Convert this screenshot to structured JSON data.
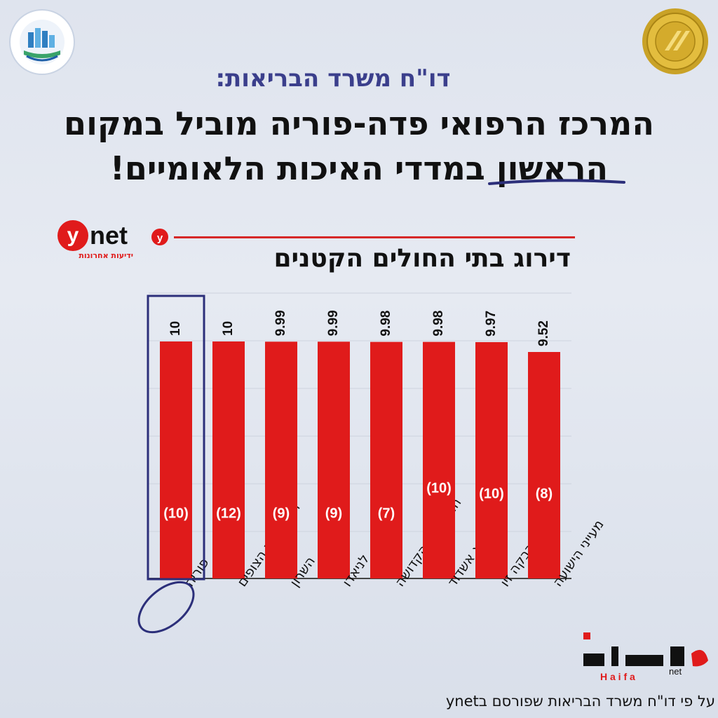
{
  "header": {
    "report_title": "דו\"ח משרד הבריאות:",
    "headline_line1": "המרכז הרפואי פדה-פוריה מוביל במקום",
    "headline_line2": "הראשון במדדי האיכות הלאומיים!"
  },
  "logos": {
    "left": "center-logo",
    "right": "joint-commission-seal",
    "ynet": "ynet",
    "ynet_sub": "ידיעות אחרונות",
    "haifa": "Haifa net"
  },
  "colors": {
    "bar": "#e01b1b",
    "highlight": "#2c2f7a",
    "title_blue": "#3b3f8c"
  },
  "chart_data": {
    "type": "bar",
    "title": "דירוג בתי החולים הקטנים",
    "categories": [
      "פוריה",
      "הדסה הר הצופים",
      "השרון",
      "לניאדו",
      "המשפחה הקדושה",
      "אסותא אשדוד",
      "רבקה זיו",
      "מעייני הישועה"
    ],
    "values": [
      10,
      10,
      9.99,
      9.99,
      9.98,
      9.98,
      9.97,
      9.52
    ],
    "value_labels": [
      "10",
      "10",
      "9.99",
      "9.99",
      "9.98",
      "9.98",
      "9.97",
      "9.52"
    ],
    "rank_labels": [
      "(10)",
      "(12)",
      "(9)",
      "(9)",
      "(7)",
      "(10)",
      "(10)",
      "(8)"
    ],
    "highlighted_index": 0,
    "grid": true,
    "legend": "none"
  },
  "footer": {
    "note": "על פי דו\"ח משרד הבריאות שפורסם בynet"
  }
}
